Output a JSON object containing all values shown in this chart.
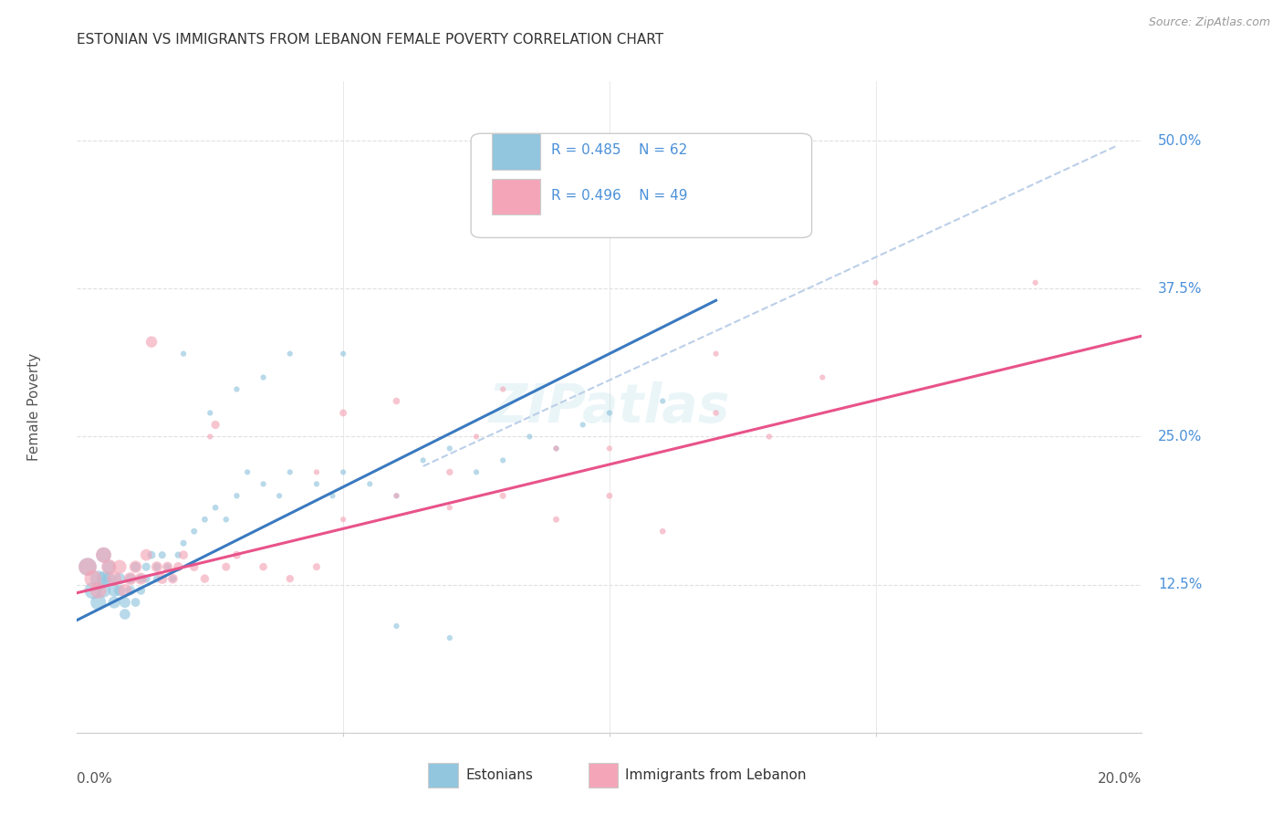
{
  "title": "ESTONIAN VS IMMIGRANTS FROM LEBANON FEMALE POVERTY CORRELATION CHART",
  "source": "Source: ZipAtlas.com",
  "ylabel": "Female Poverty",
  "ytick_labels": [
    "12.5%",
    "25.0%",
    "37.5%",
    "50.0%"
  ],
  "ytick_values": [
    0.125,
    0.25,
    0.375,
    0.5
  ],
  "xmin": 0.0,
  "xmax": 0.2,
  "ymin": 0.0,
  "ymax": 0.55,
  "legend_R1": "R = 0.485",
  "legend_N1": "N = 62",
  "legend_R2": "R = 0.496",
  "legend_N2": "N = 49",
  "color_blue": "#92c5de",
  "color_pink": "#f4a6b8",
  "color_blue_line": "#3a7abf",
  "color_pink_line": "#e8538a",
  "color_dashed": "#bbcfe8",
  "background_color": "#ffffff",
  "grid_color": "#e0e0e0",
  "blue_scatter_x": [
    0.002,
    0.003,
    0.004,
    0.004,
    0.005,
    0.005,
    0.005,
    0.006,
    0.006,
    0.007,
    0.007,
    0.008,
    0.008,
    0.009,
    0.009,
    0.01,
    0.01,
    0.011,
    0.011,
    0.012,
    0.012,
    0.013,
    0.013,
    0.014,
    0.015,
    0.015,
    0.016,
    0.017,
    0.018,
    0.019,
    0.02,
    0.022,
    0.024,
    0.026,
    0.028,
    0.03,
    0.032,
    0.035,
    0.038,
    0.04,
    0.045,
    0.048,
    0.05,
    0.055,
    0.06,
    0.065,
    0.07,
    0.075,
    0.08,
    0.085,
    0.09,
    0.095,
    0.1,
    0.11,
    0.02,
    0.025,
    0.03,
    0.035,
    0.04,
    0.05,
    0.06,
    0.07
  ],
  "blue_scatter_y": [
    0.14,
    0.12,
    0.13,
    0.11,
    0.15,
    0.13,
    0.12,
    0.14,
    0.13,
    0.12,
    0.11,
    0.13,
    0.12,
    0.11,
    0.1,
    0.13,
    0.12,
    0.14,
    0.11,
    0.13,
    0.12,
    0.14,
    0.13,
    0.15,
    0.14,
    0.13,
    0.15,
    0.14,
    0.13,
    0.15,
    0.16,
    0.17,
    0.18,
    0.19,
    0.18,
    0.2,
    0.22,
    0.21,
    0.2,
    0.22,
    0.21,
    0.2,
    0.22,
    0.21,
    0.2,
    0.23,
    0.24,
    0.22,
    0.23,
    0.25,
    0.24,
    0.26,
    0.27,
    0.28,
    0.32,
    0.27,
    0.29,
    0.3,
    0.32,
    0.32,
    0.09,
    0.08
  ],
  "blue_scatter_sizes": [
    200,
    180,
    160,
    150,
    140,
    130,
    120,
    110,
    100,
    95,
    90,
    85,
    80,
    75,
    70,
    65,
    60,
    55,
    50,
    48,
    46,
    44,
    42,
    40,
    38,
    36,
    34,
    32,
    30,
    28,
    26,
    25,
    24,
    23,
    22,
    21,
    20,
    20,
    20,
    20,
    20,
    20,
    20,
    20,
    20,
    20,
    20,
    20,
    20,
    20,
    20,
    20,
    20,
    20,
    20,
    20,
    20,
    20,
    20,
    20,
    20,
    20
  ],
  "pink_scatter_x": [
    0.002,
    0.003,
    0.004,
    0.005,
    0.006,
    0.007,
    0.008,
    0.009,
    0.01,
    0.011,
    0.012,
    0.013,
    0.014,
    0.015,
    0.016,
    0.017,
    0.018,
    0.019,
    0.02,
    0.022,
    0.024,
    0.026,
    0.028,
    0.03,
    0.035,
    0.04,
    0.045,
    0.05,
    0.06,
    0.07,
    0.08,
    0.09,
    0.1,
    0.11,
    0.12,
    0.13,
    0.14,
    0.025,
    0.045,
    0.075,
    0.09,
    0.12,
    0.08,
    0.1,
    0.05,
    0.06,
    0.07,
    0.18,
    0.15
  ],
  "pink_scatter_y": [
    0.14,
    0.13,
    0.12,
    0.15,
    0.14,
    0.13,
    0.14,
    0.12,
    0.13,
    0.14,
    0.13,
    0.15,
    0.33,
    0.14,
    0.13,
    0.14,
    0.13,
    0.14,
    0.15,
    0.14,
    0.13,
    0.26,
    0.14,
    0.15,
    0.14,
    0.13,
    0.14,
    0.27,
    0.28,
    0.22,
    0.2,
    0.18,
    0.2,
    0.17,
    0.27,
    0.25,
    0.3,
    0.25,
    0.22,
    0.25,
    0.24,
    0.32,
    0.29,
    0.24,
    0.18,
    0.2,
    0.19,
    0.38,
    0.38
  ],
  "pink_scatter_sizes": [
    200,
    180,
    160,
    150,
    140,
    130,
    120,
    110,
    100,
    95,
    90,
    85,
    80,
    75,
    70,
    65,
    60,
    55,
    50,
    48,
    46,
    44,
    42,
    40,
    38,
    36,
    34,
    32,
    30,
    28,
    26,
    25,
    24,
    23,
    22,
    21,
    20,
    20,
    20,
    20,
    20,
    20,
    20,
    20,
    20,
    20,
    20,
    20,
    20
  ],
  "blue_line_x": [
    0.0,
    0.12
  ],
  "blue_line_y": [
    0.095,
    0.365
  ],
  "pink_line_x": [
    0.0,
    0.2
  ],
  "pink_line_y": [
    0.118,
    0.335
  ],
  "dashed_line_x": [
    0.065,
    0.195
  ],
  "dashed_line_y": [
    0.225,
    0.495
  ]
}
